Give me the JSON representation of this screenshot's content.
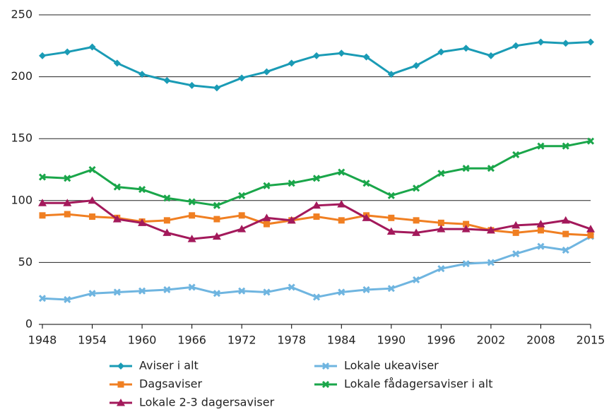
{
  "chart_data": {
    "type": "line",
    "categories": [
      "1948",
      null,
      "1954",
      null,
      "1960",
      null,
      "1966",
      null,
      "1972",
      null,
      "1978",
      null,
      "1984",
      null,
      "1990",
      null,
      "1996",
      null,
      "2002",
      null,
      "2008",
      null,
      "2015"
    ],
    "series": [
      {
        "name": "Aviser i alt",
        "color": "#1a9bb5",
        "marker": "diamond",
        "values": [
          217,
          220,
          224,
          211,
          202,
          197,
          193,
          191,
          199,
          204,
          211,
          217,
          219,
          216,
          202,
          209,
          220,
          223,
          217,
          225,
          228,
          227,
          228
        ]
      },
      {
        "name": "Lokale ukeaviser",
        "color": "#6fb5e0",
        "marker": "x",
        "values": [
          21,
          20,
          25,
          26,
          27,
          28,
          30,
          25,
          27,
          26,
          30,
          22,
          26,
          28,
          29,
          36,
          45,
          49,
          50,
          57,
          63,
          60,
          71
        ]
      },
      {
        "name": "Dagsaviser",
        "color": "#f07f22",
        "marker": "square",
        "values": [
          88,
          89,
          87,
          86,
          83,
          84,
          88,
          85,
          88,
          81,
          84,
          87,
          84,
          88,
          86,
          84,
          82,
          81,
          76,
          74,
          76,
          73,
          72
        ]
      },
      {
        "name": "Lokale fådagersaviser i alt",
        "color": "#1aa64a",
        "marker": "x",
        "values": [
          119,
          118,
          125,
          111,
          109,
          102,
          99,
          96,
          104,
          112,
          114,
          118,
          123,
          114,
          104,
          110,
          122,
          126,
          126,
          137,
          144,
          144,
          148
        ]
      },
      {
        "name": "Lokale 2-3 dagersaviser",
        "color": "#a3195b",
        "marker": "triangle",
        "values": [
          98,
          98,
          100,
          85,
          82,
          74,
          69,
          71,
          77,
          86,
          84,
          96,
          97,
          86,
          75,
          74,
          77,
          77,
          76,
          80,
          81,
          84,
          77
        ]
      }
    ],
    "ylim": [
      0,
      250
    ],
    "yticks": [
      0,
      50,
      100,
      150,
      200,
      250
    ],
    "grid": true
  }
}
